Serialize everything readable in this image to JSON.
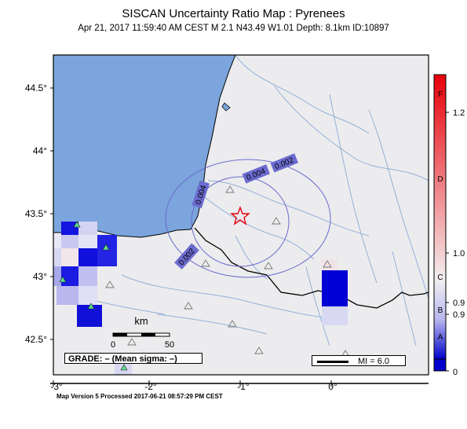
{
  "title": "SISCAN Uncertainty Ratio Map : Pyrenees",
  "subtitle": "Apr 21, 2017 11:59:40 AM CEST   M 2.1   N43.49 W1.01   Depth: 8.1km   ID:10897",
  "footer": "Map Version 5 Processed 2017-06-21 08:57:29 PM CEST",
  "axes": {
    "lat_ticks": [
      "44.5°",
      "44°",
      "43.5°",
      "43°",
      "42.5°"
    ],
    "lon_ticks": [
      "-3°",
      "-2°",
      "-1°",
      "0°"
    ]
  },
  "scale_bar": {
    "unit": "km",
    "labels": [
      "0",
      "50"
    ]
  },
  "contours": [
    "0.002",
    "0.004",
    "0.004",
    "0.002"
  ],
  "grade_text": "GRADE: – (Mean sigma: –)",
  "mi_legend": "MI = 6.0",
  "colorbar": {
    "values": [
      "1.2",
      "1.0",
      "0.9",
      "0.9",
      "0"
    ],
    "grades": [
      "F",
      "D",
      "C",
      "B",
      "A"
    ],
    "colors": {
      "top": "#e8000a",
      "mid": "#f2eef0",
      "bottom": "#0000cc"
    }
  },
  "colors": {
    "sea": "#7ba5dc",
    "land": "#ececee",
    "river": "#93b0d8",
    "contour": "#6b6bd0",
    "epicenter": "#e8000a",
    "station_green": "#5cdc8c"
  }
}
